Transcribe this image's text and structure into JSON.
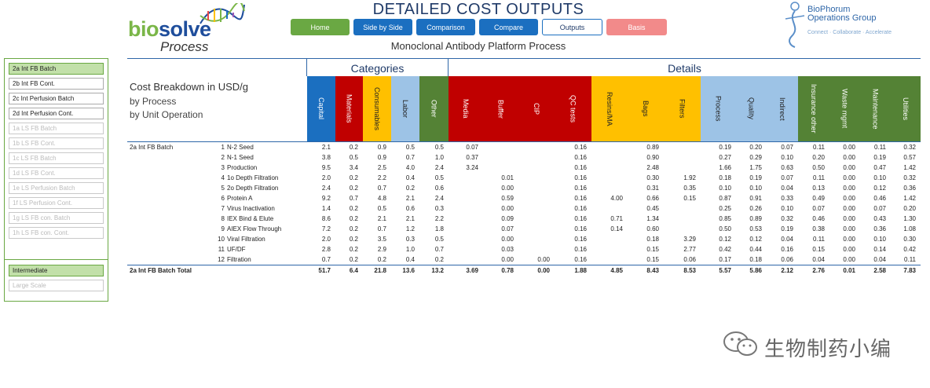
{
  "brand": {
    "word1": "bio",
    "word2": "solve",
    "word3": "Process"
  },
  "title": "DETAILED COST OUTPUTS",
  "subtitle": "Monoclonal Antibody Platform Process",
  "nav": [
    "Home",
    "Side by Side",
    "Comparison",
    "Compare",
    "Outputs",
    "Basis"
  ],
  "partner": {
    "line1": "BioPhorum",
    "line2": "Operations Group",
    "tagline": "Connect · Collaborate · Accelerate"
  },
  "sidebar": {
    "process_items": [
      "2a Int FB Batch",
      "2b Int FB Cont.",
      "2c Int Perfusion Batch",
      "2d Int Perfusion Cont.",
      "1a LS FB Batch",
      "1b LS FB Cont.",
      "1c LS FB Batch",
      "1d LS FB Cont.",
      "1e LS Perfusion Batch",
      "1f LS Perfusion Cont.",
      "1g LS FB con. Batch",
      "1h LS FB con. Cont."
    ],
    "scale_items": [
      "Intermediate",
      "Large Scale"
    ]
  },
  "header": {
    "categories_label": "Categories",
    "details_label": "Details",
    "cost_title": "Cost Breakdown in USD/g",
    "by_process": "by Process",
    "by_unit_op": "by Unit Operation"
  },
  "columns": [
    {
      "label": "Capital",
      "color": "#1b6fc0",
      "text": "#ffffff"
    },
    {
      "label": "Materials",
      "color": "#c00000",
      "text": "#ffffff"
    },
    {
      "label": "Consumables",
      "color": "#ffc000",
      "text": "#222222"
    },
    {
      "label": "Labor",
      "color": "#9dc3e6",
      "text": "#222222"
    },
    {
      "label": "Other",
      "color": "#548235",
      "text": "#ffffff"
    },
    {
      "label": "Media",
      "color": "#c00000",
      "text": "#ffffff"
    },
    {
      "label": "Buffer",
      "color": "#c00000",
      "text": "#ffffff"
    },
    {
      "label": "CIP",
      "color": "#c00000",
      "text": "#ffffff"
    },
    {
      "label": "QC tests",
      "color": "#c00000",
      "text": "#ffffff"
    },
    {
      "label": "Resins/MA",
      "color": "#ffc000",
      "text": "#222222"
    },
    {
      "label": "Bags",
      "color": "#ffc000",
      "text": "#222222"
    },
    {
      "label": "Filters",
      "color": "#ffc000",
      "text": "#222222"
    },
    {
      "label": "Process",
      "color": "#9dc3e6",
      "text": "#222222"
    },
    {
      "label": "Quality",
      "color": "#9dc3e6",
      "text": "#222222"
    },
    {
      "label": "Indirect",
      "color": "#9dc3e6",
      "text": "#222222"
    },
    {
      "label": "Insurance other",
      "color": "#548235",
      "text": "#ffffff"
    },
    {
      "label": "Waste mgmt",
      "color": "#548235",
      "text": "#ffffff"
    },
    {
      "label": "Maintenance",
      "color": "#548235",
      "text": "#ffffff"
    },
    {
      "label": "Utilities",
      "color": "#548235",
      "text": "#ffffff"
    }
  ],
  "rows": [
    {
      "group": "2a Int FB Batch",
      "num": "1",
      "op": "N-2 Seed",
      "v": [
        "2.1",
        "0.2",
        "0.9",
        "0.5",
        "0.5",
        "0.07",
        "",
        "",
        "0.16",
        "",
        "0.89",
        "",
        "0.19",
        "0.20",
        "0.07",
        "0.11",
        "0.00",
        "0.11",
        "0.32"
      ]
    },
    {
      "group": "",
      "num": "2",
      "op": "N-1 Seed",
      "v": [
        "3.8",
        "0.5",
        "0.9",
        "0.7",
        "1.0",
        "0.37",
        "",
        "",
        "0.16",
        "",
        "0.90",
        "",
        "0.27",
        "0.29",
        "0.10",
        "0.20",
        "0.00",
        "0.19",
        "0.57"
      ]
    },
    {
      "group": "",
      "num": "3",
      "op": "Production",
      "v": [
        "9.5",
        "3.4",
        "2.5",
        "4.0",
        "2.4",
        "3.24",
        "",
        "",
        "0.16",
        "",
        "2.48",
        "",
        "1.66",
        "1.75",
        "0.63",
        "0.50",
        "0.00",
        "0.47",
        "1.42"
      ]
    },
    {
      "group": "",
      "num": "4",
      "op": "1o Depth Filtration",
      "v": [
        "2.0",
        "0.2",
        "2.2",
        "0.4",
        "0.5",
        "",
        "0.01",
        "",
        "0.16",
        "",
        "0.30",
        "1.92",
        "0.18",
        "0.19",
        "0.07",
        "0.11",
        "0.00",
        "0.10",
        "0.32"
      ]
    },
    {
      "group": "",
      "num": "5",
      "op": "2o Depth Filtration",
      "v": [
        "2.4",
        "0.2",
        "0.7",
        "0.2",
        "0.6",
        "",
        "0.00",
        "",
        "0.16",
        "",
        "0.31",
        "0.35",
        "0.10",
        "0.10",
        "0.04",
        "0.13",
        "0.00",
        "0.12",
        "0.36"
      ]
    },
    {
      "group": "",
      "num": "6",
      "op": "Protein A",
      "v": [
        "9.2",
        "0.7",
        "4.8",
        "2.1",
        "2.4",
        "",
        "0.59",
        "",
        "0.16",
        "4.00",
        "0.66",
        "0.15",
        "0.87",
        "0.91",
        "0.33",
        "0.49",
        "0.00",
        "0.46",
        "1.42"
      ]
    },
    {
      "group": "",
      "num": "7",
      "op": "Virus Inactivation",
      "v": [
        "1.4",
        "0.2",
        "0.5",
        "0.6",
        "0.3",
        "",
        "0.00",
        "",
        "0.16",
        "",
        "0.45",
        "",
        "0.25",
        "0.26",
        "0.10",
        "0.07",
        "0.00",
        "0.07",
        "0.20"
      ]
    },
    {
      "group": "",
      "num": "8",
      "op": "IEX Bind & Elute",
      "v": [
        "8.6",
        "0.2",
        "2.1",
        "2.1",
        "2.2",
        "",
        "0.09",
        "",
        "0.16",
        "0.71",
        "1.34",
        "",
        "0.85",
        "0.89",
        "0.32",
        "0.46",
        "0.00",
        "0.43",
        "1.30"
      ]
    },
    {
      "group": "",
      "num": "9",
      "op": "AIEX Flow Through",
      "v": [
        "7.2",
        "0.2",
        "0.7",
        "1.2",
        "1.8",
        "",
        "0.07",
        "",
        "0.16",
        "0.14",
        "0.60",
        "",
        "0.50",
        "0.53",
        "0.19",
        "0.38",
        "0.00",
        "0.36",
        "1.08"
      ]
    },
    {
      "group": "",
      "num": "10",
      "op": "Viral Filtration",
      "v": [
        "2.0",
        "0.2",
        "3.5",
        "0.3",
        "0.5",
        "",
        "0.00",
        "",
        "0.16",
        "",
        "0.18",
        "3.29",
        "0.12",
        "0.12",
        "0.04",
        "0.11",
        "0.00",
        "0.10",
        "0.30"
      ]
    },
    {
      "group": "",
      "num": "11",
      "op": "UF/DF",
      "v": [
        "2.8",
        "0.2",
        "2.9",
        "1.0",
        "0.7",
        "",
        "0.03",
        "",
        "0.16",
        "",
        "0.15",
        "2.77",
        "0.42",
        "0.44",
        "0.16",
        "0.15",
        "0.00",
        "0.14",
        "0.42"
      ]
    },
    {
      "group": "",
      "num": "12",
      "op": "Filtration",
      "v": [
        "0.7",
        "0.2",
        "0.2",
        "0.4",
        "0.2",
        "",
        "0.00",
        "0.00",
        "0.16",
        "",
        "0.15",
        "0.06",
        "0.17",
        "0.18",
        "0.06",
        "0.04",
        "0.00",
        "0.04",
        "0.11"
      ]
    }
  ],
  "total": {
    "label": "2a Int FB Batch Total",
    "v": [
      "51.7",
      "6.4",
      "21.8",
      "13.6",
      "13.2",
      "3.69",
      "0.78",
      "0.00",
      "1.88",
      "4.85",
      "8.43",
      "8.53",
      "5.57",
      "5.86",
      "2.12",
      "2.76",
      "0.01",
      "2.58",
      "7.83"
    ]
  },
  "watermark": "生物制药小编"
}
